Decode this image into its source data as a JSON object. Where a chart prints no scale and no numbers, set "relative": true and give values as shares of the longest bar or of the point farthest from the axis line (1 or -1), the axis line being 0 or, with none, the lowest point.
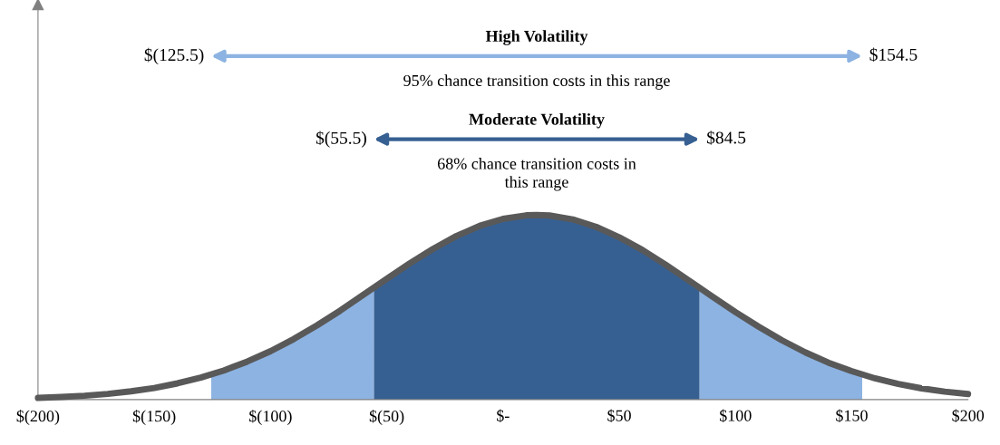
{
  "chart_data": {
    "type": "line",
    "relative": true,
    "legend": false,
    "grid": false,
    "tick_labels": "x",
    "marker": "none",
    "line_style": "solid",
    "xlim": [
      -200,
      200
    ],
    "xticks": [
      {
        "value": -200,
        "label": "$(200)"
      },
      {
        "value": -150,
        "label": "$(150)"
      },
      {
        "value": -100,
        "label": "$(100)"
      },
      {
        "value": -50,
        "label": "$(50)"
      },
      {
        "value": 0,
        "label": "$-"
      },
      {
        "value": 50,
        "label": "$50"
      },
      {
        "value": 100,
        "label": "$100"
      },
      {
        "value": 150,
        "label": "$150"
      },
      {
        "value": 200,
        "label": "$200"
      }
    ],
    "series": [
      {
        "type": "area",
        "color": "#8db3e2",
        "x": [
          -125.5,
          -120,
          -110,
          -100,
          -90,
          -80,
          -70,
          -60,
          -55.5
        ],
        "values": [
          0.135,
          0.158,
          0.206,
          0.262,
          0.328,
          0.402,
          0.482,
          0.568,
          0.607
        ]
      },
      {
        "type": "area",
        "color": "#8db3e2",
        "x": [
          84.5,
          90,
          100,
          110,
          120,
          130,
          140,
          150,
          154.5
        ],
        "values": [
          0.607,
          0.559,
          0.474,
          0.395,
          0.321,
          0.256,
          0.2,
          0.154,
          0.135
        ]
      },
      {
        "type": "area",
        "color": "#376092",
        "x": [
          -55.5,
          -50,
          -40,
          -30,
          -20,
          -10,
          0,
          10,
          14.5,
          20,
          30,
          40,
          50,
          60,
          70,
          80,
          84.5
        ],
        "values": [
          0.607,
          0.654,
          0.739,
          0.817,
          0.886,
          0.941,
          0.979,
          0.998,
          1,
          0.997,
          0.976,
          0.936,
          0.879,
          0.81,
          0.73,
          0.645,
          0.607
        ]
      },
      {
        "color": "#595959",
        "x": [
          -200,
          -190,
          -180,
          -170,
          -160,
          -150,
          -140,
          -130,
          -120,
          -110,
          -100,
          -90,
          -80,
          -70,
          -60,
          -50,
          -40,
          -30,
          -20,
          -10,
          0,
          10,
          14.5,
          20,
          30,
          40,
          50,
          60,
          70,
          80,
          90,
          100,
          110,
          120,
          130,
          140,
          150,
          160,
          170,
          180,
          190,
          200
        ],
        "values": [
          0.009,
          0.014,
          0.021,
          0.031,
          0.045,
          0.063,
          0.088,
          0.119,
          0.158,
          0.206,
          0.262,
          0.328,
          0.402,
          0.482,
          0.568,
          0.654,
          0.739,
          0.817,
          0.886,
          0.941,
          0.979,
          0.998,
          1,
          0.997,
          0.976,
          0.936,
          0.879,
          0.81,
          0.73,
          0.645,
          0.559,
          0.474,
          0.395,
          0.321,
          0.256,
          0.2,
          0.154,
          0.115,
          0.085,
          0.061,
          0.043,
          0.03
        ]
      }
    ],
    "annotations": [
      "$(125.5)",
      "$154.5",
      "High Volatility",
      "95% chance transition costs in this range",
      "$(55.5)",
      "$84.5",
      "Moderate Volatility",
      "68% chance transition costs in\nthis range"
    ]
  }
}
